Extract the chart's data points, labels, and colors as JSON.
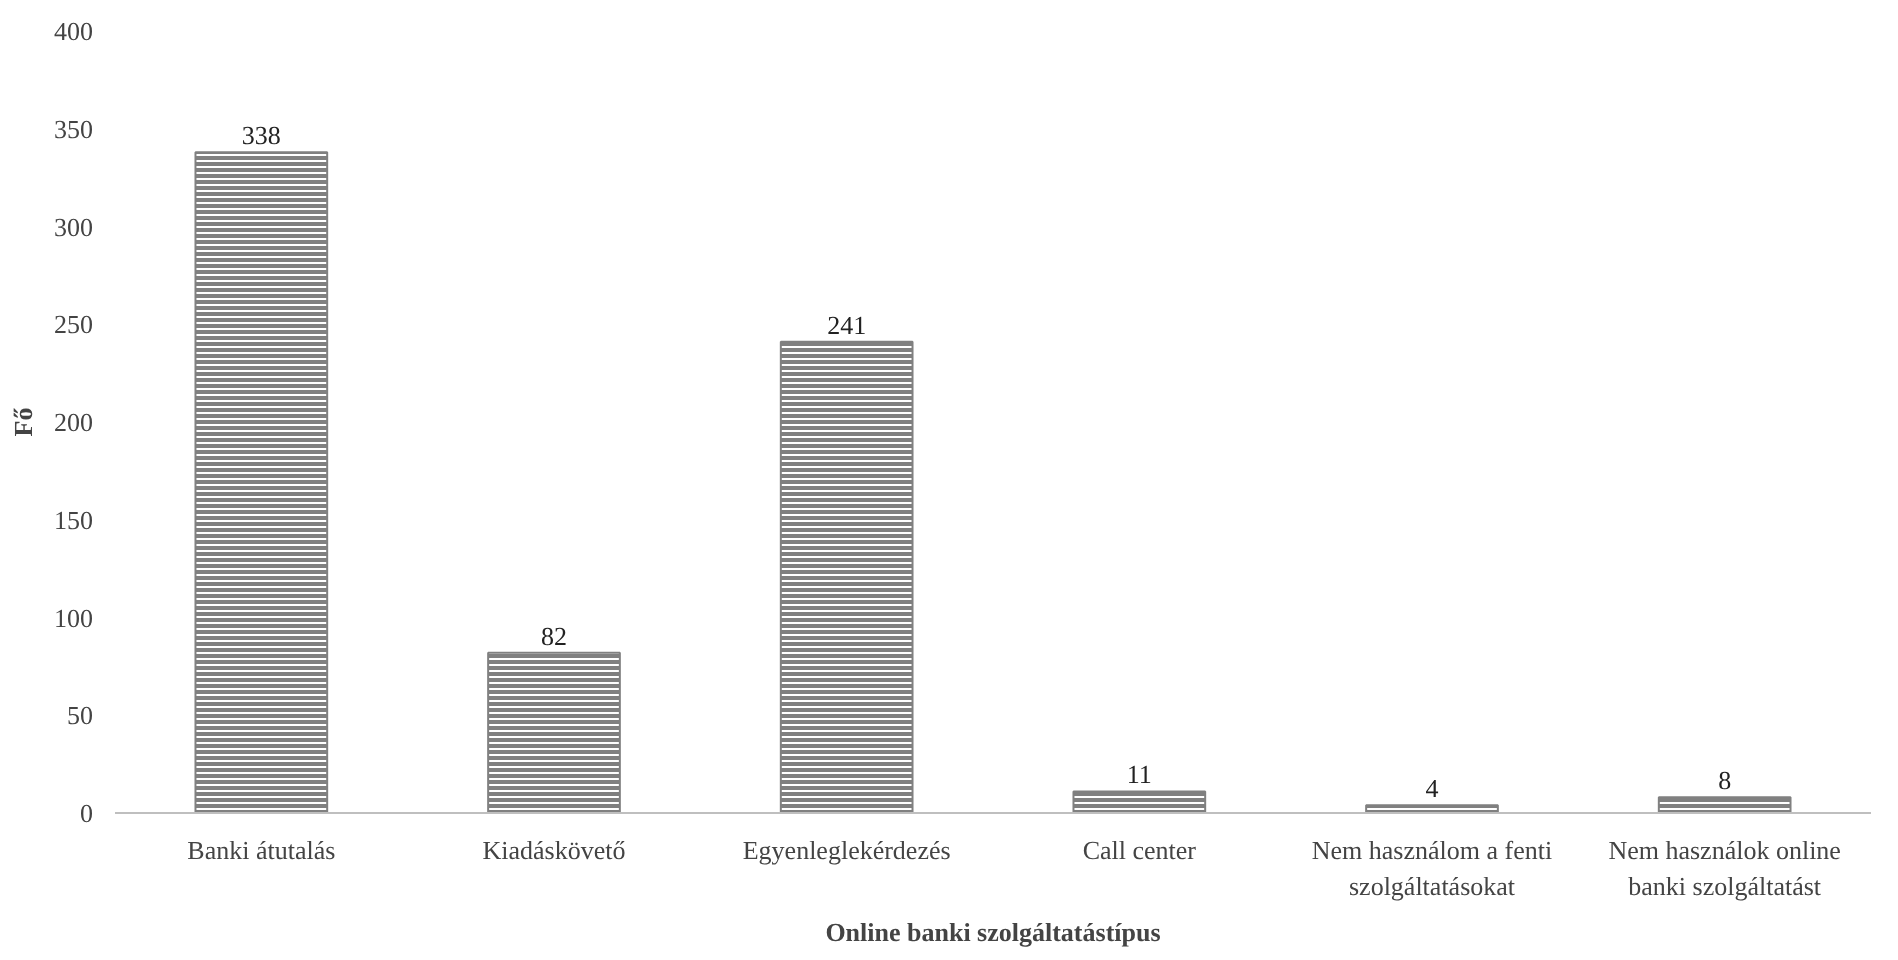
{
  "chart_data": {
    "type": "bar",
    "xlabel": "Online banki szolgáltatástípus",
    "ylabel": "Fő",
    "categories": [
      "Banki átutalás",
      "Kiadáskövető",
      "Egyenleglekérdezés",
      "Call center",
      "Nem használom a fenti szolgáltatásokat",
      "Nem használok online banki szolgáltatást"
    ],
    "values": [
      338,
      82,
      241,
      11,
      4,
      8
    ],
    "color": "#808080",
    "ylim": [
      0,
      400
    ],
    "yticks": [
      0,
      50,
      100,
      150,
      200,
      250,
      300,
      350,
      400
    ],
    "grid": false,
    "data_labels": true
  }
}
